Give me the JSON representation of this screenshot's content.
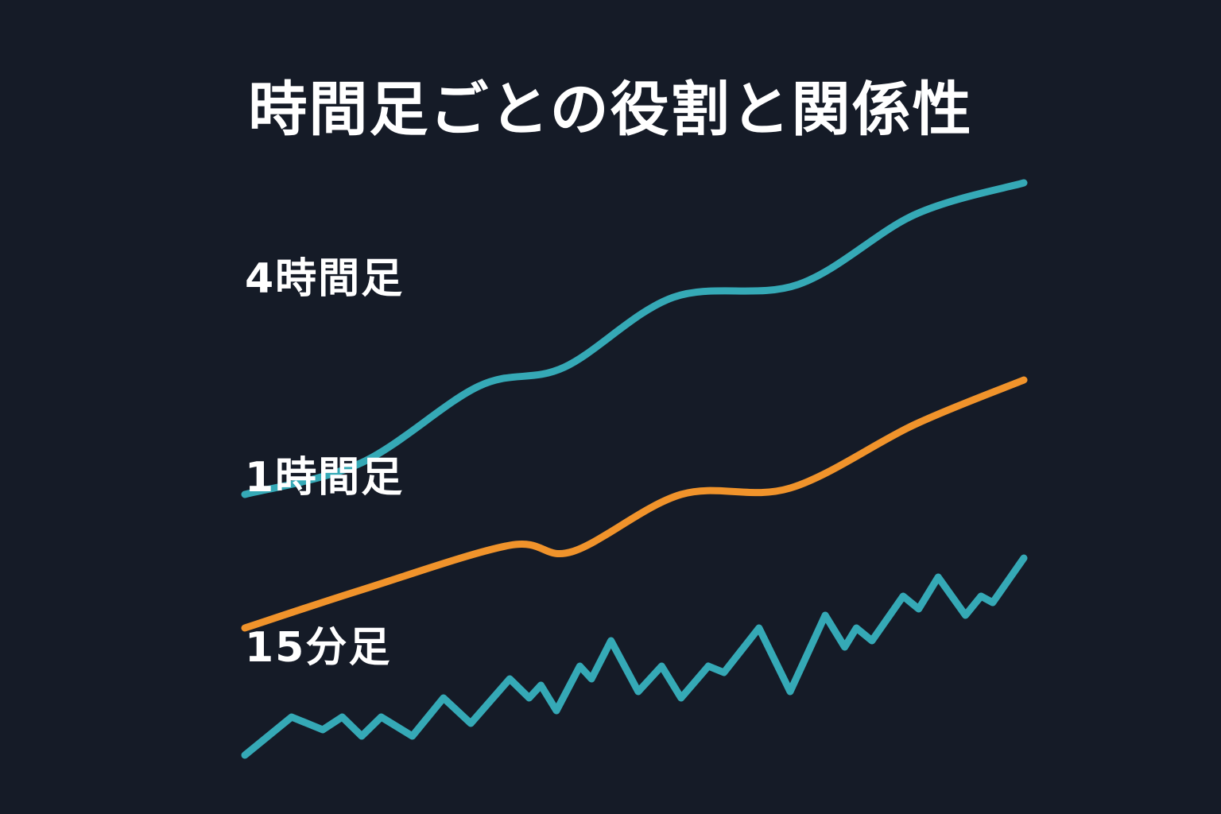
{
  "chart_data": {
    "type": "line",
    "title": "時間足ごとの役割と関係性",
    "xlabel": "",
    "ylabel": "",
    "grid": false,
    "xlim": [
      0,
      100
    ],
    "ylim": [
      0,
      100
    ],
    "series": [
      {
        "name": "4時間足",
        "color": "#35a9b6",
        "smooth": true,
        "points": [
          [
            0,
            46
          ],
          [
            15,
            51
          ],
          [
            30,
            63
          ],
          [
            41,
            66
          ],
          [
            55,
            77
          ],
          [
            71,
            79
          ],
          [
            86,
            90
          ],
          [
            100,
            95
          ]
        ]
      },
      {
        "name": "1時間足",
        "color": "#f0932b",
        "smooth": true,
        "points": [
          [
            0,
            25
          ],
          [
            15,
            31
          ],
          [
            34,
            38
          ],
          [
            42,
            37
          ],
          [
            56,
            46
          ],
          [
            70,
            47
          ],
          [
            86,
            57
          ],
          [
            100,
            64
          ]
        ]
      },
      {
        "name": "15分足",
        "color": "#35a9b6",
        "smooth": false,
        "points": [
          [
            0,
            5
          ],
          [
            6,
            11
          ],
          [
            10,
            9
          ],
          [
            12.5,
            11
          ],
          [
            15,
            8
          ],
          [
            17.5,
            11
          ],
          [
            21.5,
            8
          ],
          [
            25.5,
            14
          ],
          [
            29,
            10
          ],
          [
            34,
            17
          ],
          [
            36.5,
            14
          ],
          [
            38,
            16
          ],
          [
            40,
            12
          ],
          [
            43,
            19
          ],
          [
            44.5,
            17
          ],
          [
            47,
            23
          ],
          [
            50.5,
            15
          ],
          [
            53.5,
            19
          ],
          [
            56,
            14
          ],
          [
            59.5,
            19
          ],
          [
            61.5,
            18
          ],
          [
            66,
            25
          ],
          [
            70,
            15
          ],
          [
            74.5,
            27
          ],
          [
            77,
            22
          ],
          [
            78.5,
            25
          ],
          [
            80.5,
            23
          ],
          [
            84.5,
            30
          ],
          [
            86.5,
            28
          ],
          [
            89,
            33
          ],
          [
            92.5,
            27
          ],
          [
            94.5,
            30
          ],
          [
            96,
            29
          ],
          [
            100,
            36
          ]
        ]
      }
    ]
  }
}
